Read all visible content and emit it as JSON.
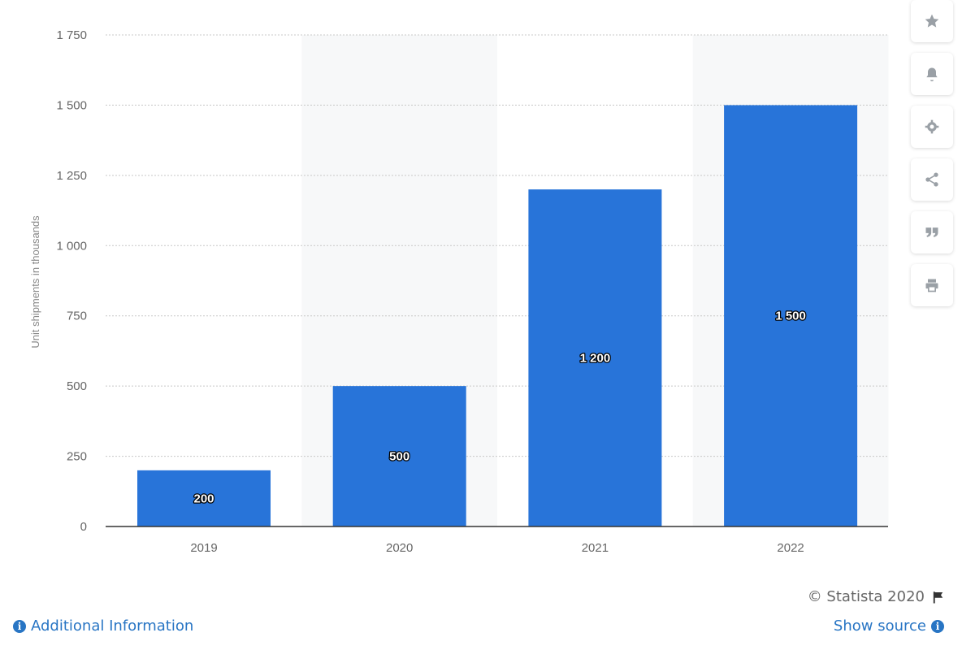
{
  "chart_data": {
    "type": "bar",
    "categories": [
      "2019",
      "2020",
      "2021",
      "2022"
    ],
    "values": [
      200,
      500,
      1200,
      1500
    ],
    "value_labels": [
      "200",
      "500",
      "1 200",
      "1 500"
    ],
    "title": "",
    "xlabel": "",
    "ylabel": "Unit shipments in thousands",
    "ylim": [
      0,
      1750
    ],
    "yticks": [
      0,
      250,
      500,
      750,
      1000,
      1250,
      1500,
      1750
    ],
    "ytick_labels": [
      "0",
      "250",
      "500",
      "750",
      "1 000",
      "1 250",
      "1 500",
      "1 750"
    ],
    "grid": true,
    "bar_color": "#2874d9",
    "alt_band_color": "#f7f8f9"
  },
  "toolbar": {
    "icons": [
      "star-icon",
      "bell-icon",
      "gear-icon",
      "share-icon",
      "quote-icon",
      "print-icon"
    ]
  },
  "footer": {
    "copyright": "© Statista 2020",
    "additional_info": "Additional Information",
    "show_source": "Show source"
  }
}
